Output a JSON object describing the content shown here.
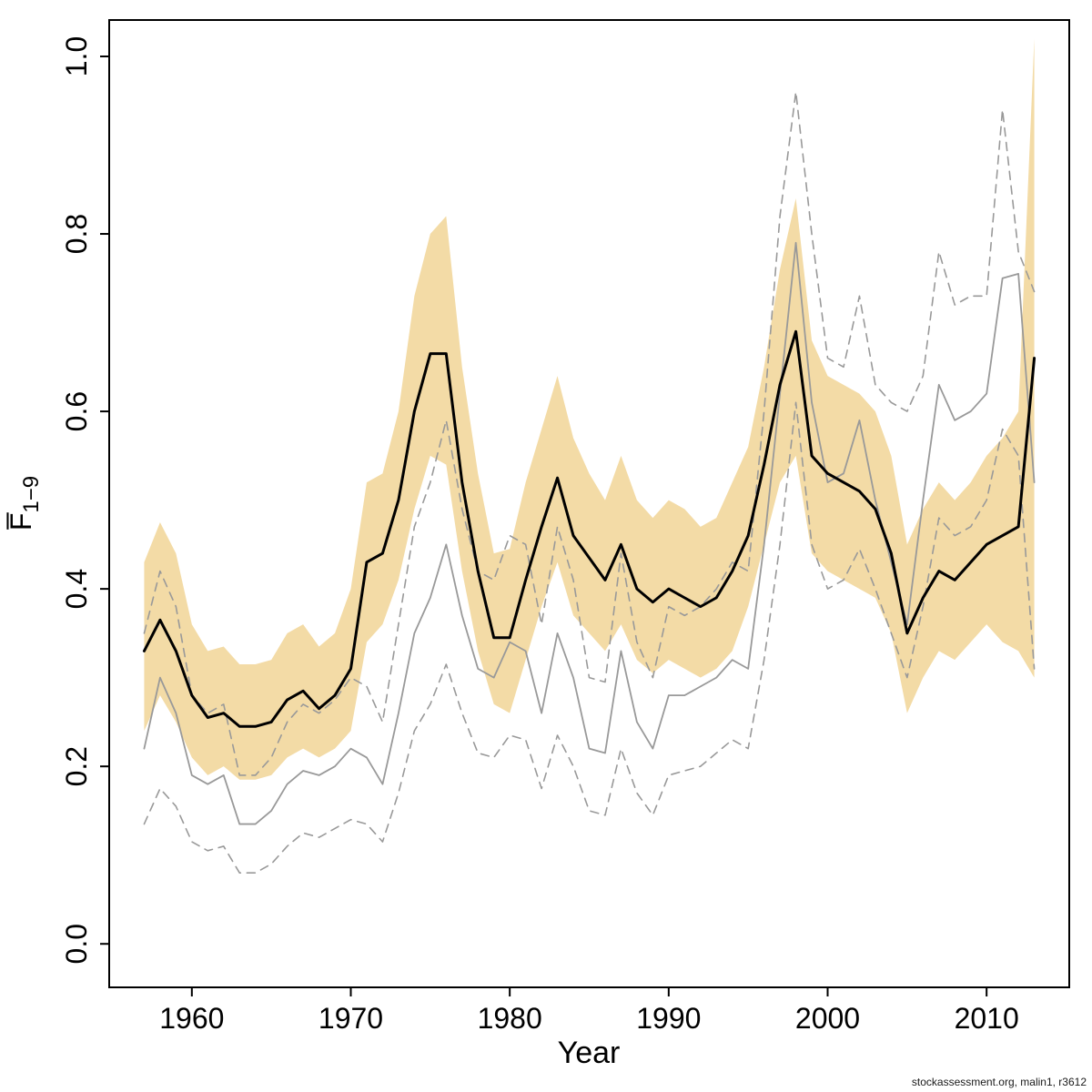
{
  "chart_data": {
    "type": "line",
    "title": "",
    "xlabel": "Year",
    "ylabel": {
      "base": "F̅",
      "sub": "1−9"
    },
    "xlim": [
      1954.8,
      2015.2
    ],
    "ylim": [
      -0.049,
      1.041
    ],
    "x_ticks": [
      1960,
      1970,
      1980,
      1990,
      2000,
      2010
    ],
    "y_ticks": [
      "0.0",
      "0.2",
      "0.4",
      "0.6",
      "0.8",
      "1.0"
    ],
    "grid": false,
    "legend": "none",
    "years": [
      1957,
      1958,
      1959,
      1960,
      1961,
      1962,
      1963,
      1964,
      1965,
      1966,
      1967,
      1968,
      1969,
      1970,
      1971,
      1972,
      1973,
      1974,
      1975,
      1976,
      1977,
      1978,
      1979,
      1980,
      1981,
      1982,
      1983,
      1984,
      1985,
      1986,
      1987,
      1988,
      1989,
      1990,
      1991,
      1992,
      1993,
      1994,
      1995,
      1996,
      1997,
      1998,
      1999,
      2000,
      2001,
      2002,
      2003,
      2004,
      2005,
      2006,
      2007,
      2008,
      2009,
      2010,
      2011,
      2012,
      2013
    ],
    "band": {
      "name": "estimate-confidence-band",
      "color": "#f3dba6",
      "upper": [
        0.43,
        0.475,
        0.44,
        0.36,
        0.33,
        0.335,
        0.315,
        0.315,
        0.32,
        0.35,
        0.36,
        0.335,
        0.35,
        0.4,
        0.52,
        0.53,
        0.6,
        0.73,
        0.8,
        0.82,
        0.65,
        0.53,
        0.44,
        0.445,
        0.52,
        0.58,
        0.64,
        0.57,
        0.53,
        0.5,
        0.55,
        0.5,
        0.48,
        0.5,
        0.49,
        0.47,
        0.48,
        0.52,
        0.56,
        0.65,
        0.76,
        0.84,
        0.68,
        0.64,
        0.63,
        0.62,
        0.6,
        0.55,
        0.45,
        0.49,
        0.52,
        0.5,
        0.52,
        0.55,
        0.57,
        0.6,
        1.02
      ],
      "lower": [
        0.24,
        0.28,
        0.25,
        0.21,
        0.19,
        0.2,
        0.185,
        0.185,
        0.19,
        0.21,
        0.22,
        0.21,
        0.22,
        0.24,
        0.34,
        0.36,
        0.41,
        0.49,
        0.55,
        0.54,
        0.42,
        0.33,
        0.27,
        0.26,
        0.32,
        0.38,
        0.43,
        0.37,
        0.35,
        0.33,
        0.36,
        0.32,
        0.305,
        0.32,
        0.31,
        0.3,
        0.31,
        0.33,
        0.38,
        0.45,
        0.52,
        0.55,
        0.44,
        0.42,
        0.41,
        0.4,
        0.39,
        0.35,
        0.26,
        0.3,
        0.33,
        0.32,
        0.34,
        0.36,
        0.34,
        0.33,
        0.3
      ]
    },
    "series": [
      {
        "name": "comparison-run-upper-ci",
        "style": "dashed",
        "color": "#999999",
        "width": 1.6,
        "values": [
          0.35,
          0.42,
          0.38,
          0.28,
          0.26,
          0.27,
          0.19,
          0.19,
          0.21,
          0.25,
          0.27,
          0.26,
          0.275,
          0.3,
          0.29,
          0.25,
          0.36,
          0.47,
          0.52,
          0.59,
          0.49,
          0.42,
          0.41,
          0.46,
          0.45,
          0.36,
          0.47,
          0.41,
          0.3,
          0.295,
          0.44,
          0.34,
          0.3,
          0.38,
          0.37,
          0.38,
          0.4,
          0.43,
          0.42,
          0.6,
          0.82,
          0.96,
          0.8,
          0.66,
          0.65,
          0.73,
          0.63,
          0.61,
          0.6,
          0.64,
          0.78,
          0.72,
          0.73,
          0.73,
          0.94,
          0.78,
          0.735
        ]
      },
      {
        "name": "comparison-run-lower-ci",
        "style": "dashed",
        "color": "#999999",
        "width": 1.6,
        "values": [
          0.135,
          0.175,
          0.155,
          0.115,
          0.105,
          0.11,
          0.08,
          0.08,
          0.09,
          0.11,
          0.125,
          0.12,
          0.13,
          0.14,
          0.135,
          0.115,
          0.17,
          0.24,
          0.27,
          0.315,
          0.26,
          0.215,
          0.21,
          0.235,
          0.23,
          0.175,
          0.235,
          0.2,
          0.15,
          0.145,
          0.22,
          0.17,
          0.145,
          0.19,
          0.195,
          0.2,
          0.215,
          0.23,
          0.22,
          0.32,
          0.45,
          0.61,
          0.45,
          0.4,
          0.41,
          0.445,
          0.4,
          0.35,
          0.3,
          0.38,
          0.48,
          0.46,
          0.47,
          0.5,
          0.58,
          0.55,
          0.31
        ]
      },
      {
        "name": "comparison-run-estimate",
        "style": "solid",
        "color": "#999999",
        "width": 1.8,
        "values": [
          0.22,
          0.3,
          0.26,
          0.19,
          0.18,
          0.19,
          0.135,
          0.135,
          0.15,
          0.18,
          0.195,
          0.19,
          0.2,
          0.22,
          0.21,
          0.18,
          0.26,
          0.35,
          0.39,
          0.45,
          0.37,
          0.31,
          0.3,
          0.34,
          0.33,
          0.26,
          0.35,
          0.3,
          0.22,
          0.215,
          0.33,
          0.25,
          0.22,
          0.28,
          0.28,
          0.29,
          0.3,
          0.32,
          0.31,
          0.45,
          0.62,
          0.79,
          0.61,
          0.52,
          0.53,
          0.59,
          0.5,
          0.43,
          0.36,
          0.5,
          0.63,
          0.59,
          0.6,
          0.62,
          0.75,
          0.755,
          0.52
        ]
      },
      {
        "name": "current-run-estimate",
        "style": "solid",
        "color": "#000000",
        "width": 3,
        "values": [
          0.33,
          0.365,
          0.33,
          0.28,
          0.255,
          0.26,
          0.245,
          0.245,
          0.25,
          0.275,
          0.285,
          0.265,
          0.28,
          0.31,
          0.43,
          0.44,
          0.5,
          0.6,
          0.665,
          0.665,
          0.52,
          0.42,
          0.345,
          0.345,
          0.41,
          0.47,
          0.525,
          0.46,
          0.435,
          0.41,
          0.45,
          0.4,
          0.385,
          0.4,
          0.39,
          0.38,
          0.39,
          0.42,
          0.46,
          0.54,
          0.63,
          0.69,
          0.55,
          0.53,
          0.52,
          0.51,
          0.49,
          0.44,
          0.35,
          0.39,
          0.42,
          0.41,
          0.43,
          0.45,
          0.46,
          0.47,
          0.66
        ]
      }
    ]
  },
  "footer": {
    "text": "stockassessment.org, malin1, r3612"
  }
}
